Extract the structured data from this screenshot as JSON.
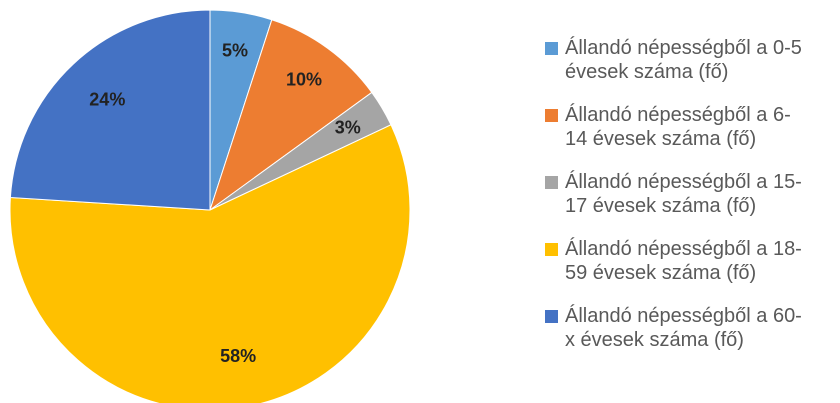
{
  "chart_data": {
    "type": "pie",
    "categories": [
      "Állandó népességből a 0-5 évesek száma (fő)",
      "Állandó népességből a 6-14 évesek száma (fő)",
      "Állandó népességből a 15-17 évesek száma (fő)",
      "Állandó népességből a 18-59 évesek száma (fő)",
      "Állandó népességből a 60-x évesek száma (fő)"
    ],
    "values": [
      5,
      10,
      3,
      58,
      24
    ],
    "value_labels": [
      "5%",
      "10%",
      "3%",
      "58%",
      "24%"
    ],
    "colors": [
      "#5b9bd5",
      "#ed7d31",
      "#a5a5a5",
      "#ffc000",
      "#4472c4"
    ],
    "legend": "right"
  }
}
